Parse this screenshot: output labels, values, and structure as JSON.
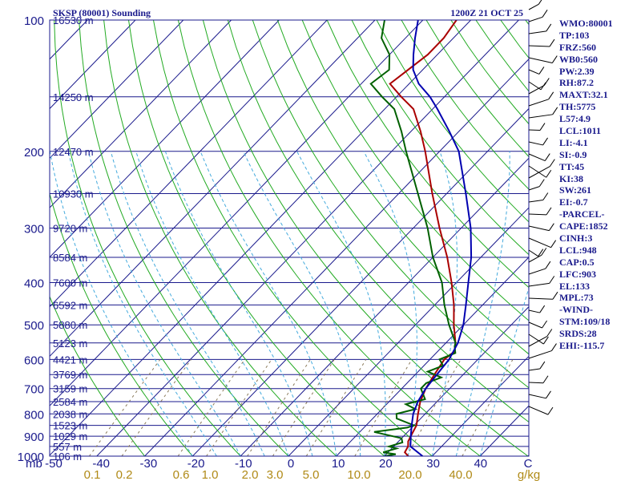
{
  "chart_data": {
    "type": "skew-t log-p sounding",
    "title": "SKSP (80001) Sounding",
    "timestamp": "1200Z 21 OCT 25",
    "y_axis_unit": "mb",
    "pressure_range": [
      100,
      1000
    ],
    "pressure_labels": [
      "100",
      "200",
      "300",
      "400",
      "500",
      "600",
      "700",
      "800",
      "900",
      "1000"
    ],
    "temperature_range_bottom": [
      -50,
      50
    ],
    "temperature_labels": [
      "-50",
      "-40",
      "-30",
      "-20",
      "-10",
      "0",
      "10",
      "20",
      "30",
      "40",
      "C"
    ],
    "mixing_ratio_labels": [
      "0.1",
      "0.2",
      "0.6",
      "1.0",
      "2.0",
      "3.0",
      "5.0",
      "10.0",
      "20.0",
      "40.0",
      "g/kg"
    ],
    "mixing_ratio_values": [
      0.1,
      0.2,
      0.6,
      1.0,
      2.0,
      3.0,
      5.0,
      10.0,
      20.0,
      40.0
    ],
    "height_labels": [
      {
        "p": 100,
        "label": "16530 m"
      },
      {
        "p": 150,
        "label": "14250 m"
      },
      {
        "p": 200,
        "label": "12470 m"
      },
      {
        "p": 250,
        "label": "10930 m"
      },
      {
        "p": 300,
        "label": "9720 m"
      },
      {
        "p": 350,
        "label": "8584 m"
      },
      {
        "p": 400,
        "label": "7600 m"
      },
      {
        "p": 450,
        "label": "6592 m"
      },
      {
        "p": 500,
        "label": "5880 m"
      },
      {
        "p": 550,
        "label": "5123 m"
      },
      {
        "p": 600,
        "label": "4421 m"
      },
      {
        "p": 650,
        "label": "3769 m"
      },
      {
        "p": 700,
        "label": "3159 m"
      },
      {
        "p": 750,
        "label": "2584 m"
      },
      {
        "p": 800,
        "label": "2038 m"
      },
      {
        "p": 850,
        "label": "1523 m"
      },
      {
        "p": 900,
        "label": "1029 m"
      },
      {
        "p": 950,
        "label": "557 m"
      },
      {
        "p": 1000,
        "label": "106 m"
      }
    ],
    "series": [
      {
        "name": "temperature",
        "color": "#aa0000",
        "points": [
          [
            1000,
            25
          ],
          [
            980,
            23.5
          ],
          [
            950,
            23
          ],
          [
            925,
            22
          ],
          [
            900,
            21.5
          ],
          [
            850,
            20.5
          ],
          [
            800,
            18.5
          ],
          [
            750,
            16.5
          ],
          [
            700,
            15
          ],
          [
            650,
            14
          ],
          [
            600,
            13
          ],
          [
            575,
            13.5
          ],
          [
            550,
            12
          ],
          [
            500,
            8
          ],
          [
            450,
            4
          ],
          [
            400,
            -1
          ],
          [
            350,
            -7
          ],
          [
            300,
            -14.5
          ],
          [
            250,
            -23
          ],
          [
            200,
            -33
          ],
          [
            180,
            -38
          ],
          [
            160,
            -44
          ],
          [
            150,
            -49
          ],
          [
            140,
            -54
          ],
          [
            120,
            -52
          ],
          [
            110,
            -52
          ],
          [
            100,
            -53
          ]
        ]
      },
      {
        "name": "dewpoint",
        "color": "#006000",
        "points": [
          [
            1000,
            20
          ],
          [
            990,
            22
          ],
          [
            980,
            19
          ],
          [
            960,
            21
          ],
          [
            950,
            19
          ],
          [
            930,
            21
          ],
          [
            910,
            20
          ],
          [
            880,
            13
          ],
          [
            860,
            19
          ],
          [
            850,
            20
          ],
          [
            820,
            15
          ],
          [
            800,
            14
          ],
          [
            780,
            17
          ],
          [
            760,
            14
          ],
          [
            740,
            17
          ],
          [
            700,
            14
          ],
          [
            680,
            14
          ],
          [
            660,
            16
          ],
          [
            640,
            12
          ],
          [
            620,
            14
          ],
          [
            600,
            12
          ],
          [
            580,
            14
          ],
          [
            560,
            12.5
          ],
          [
            550,
            12
          ],
          [
            500,
            7
          ],
          [
            450,
            2
          ],
          [
            400,
            -3
          ],
          [
            350,
            -10
          ],
          [
            300,
            -17
          ],
          [
            250,
            -26
          ],
          [
            200,
            -37
          ],
          [
            180,
            -42
          ],
          [
            160,
            -48
          ],
          [
            150,
            -53
          ],
          [
            140,
            -58
          ],
          [
            130,
            -57
          ],
          [
            120,
            -60
          ],
          [
            110,
            -65
          ],
          [
            100,
            -68
          ]
        ]
      },
      {
        "name": "parcel",
        "color": "#0000b0",
        "points": [
          [
            1000,
            28
          ],
          [
            950,
            23.5
          ],
          [
            900,
            21.5
          ],
          [
            850,
            19.5
          ],
          [
            800,
            17.5
          ],
          [
            750,
            16
          ],
          [
            700,
            15
          ],
          [
            650,
            14.5
          ],
          [
            600,
            14
          ],
          [
            550,
            12.5
          ],
          [
            500,
            10
          ],
          [
            450,
            6.5
          ],
          [
            400,
            2.5
          ],
          [
            350,
            -2
          ],
          [
            300,
            -8
          ],
          [
            250,
            -16
          ],
          [
            200,
            -26
          ],
          [
            180,
            -32
          ],
          [
            160,
            -39
          ],
          [
            150,
            -43
          ],
          [
            140,
            -48
          ],
          [
            130,
            -52
          ],
          [
            120,
            -55
          ],
          [
            110,
            -58
          ],
          [
            100,
            -61
          ]
        ]
      }
    ]
  },
  "indices": [
    "WMO:80001",
    "TP:103",
    "FRZ:560",
    "WB0:560",
    "PW:2.39",
    "RH:87.2",
    "MAXT:32.1",
    "TH:5775",
    "L57:4.9",
    "LCL:1011",
    "LI:-4.1",
    "SI:-0.9",
    "TT:45",
    "KI:38",
    "SW:261",
    "EI:-0.7",
    "-PARCEL-",
    "CAPE:1852",
    "CINH:3",
    "LCL:948",
    "CAP:0.5",
    "LFC:903",
    "EL:133",
    "MPL:73",
    "-WIND-",
    "STM:109/18",
    "SRDS:28",
    "EHI:-115.7"
  ],
  "colors": {
    "isobar": "#1a1a8c",
    "isotherm": "#1a1a8c",
    "dry_adiabat": "#22aa22",
    "moist_adiabat": "#44aadd",
    "mixing_ratio": "#8a7a5a",
    "label": "#1a1a8c"
  }
}
